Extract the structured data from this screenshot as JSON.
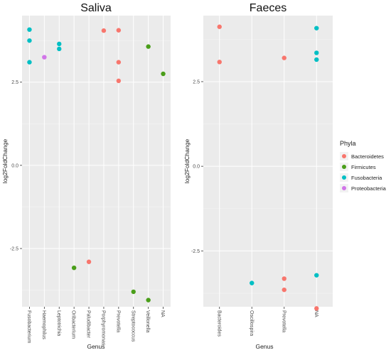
{
  "chart_data": [
    {
      "type": "scatter",
      "title": "Saliva",
      "xlabel": "Genus",
      "ylabel": "log2FoldChange",
      "categories": [
        "Fusobacterium",
        "Haemophilus",
        "Leptotrichia",
        "Oribacterium",
        "Paludibacter",
        "Porphyromonas",
        "Prevotella",
        "Streptococcus",
        "Veillonella",
        "NA"
      ],
      "yticks": [
        -2.5,
        0.0,
        2.5
      ],
      "ylim": [
        -4.25,
        4.5
      ],
      "grid": true,
      "series": [
        {
          "name": "Bacteroidetes",
          "points": [
            {
              "x": "Paludibacter",
              "y": -2.9
            },
            {
              "x": "Porphyromonas",
              "y": 4.05
            },
            {
              "x": "Prevotella",
              "y": 4.06
            },
            {
              "x": "Prevotella",
              "y": 3.1
            },
            {
              "x": "Prevotella",
              "y": 2.54
            }
          ]
        },
        {
          "name": "Firmicutes",
          "points": [
            {
              "x": "Oribacterium",
              "y": -3.08
            },
            {
              "x": "Streptococcus",
              "y": -3.8
            },
            {
              "x": "Veillonella",
              "y": 3.57
            },
            {
              "x": "Veillonella",
              "y": -4.05
            },
            {
              "x": "NA",
              "y": 2.75
            }
          ]
        },
        {
          "name": "Fusobacteria",
          "points": [
            {
              "x": "Fusobacterium",
              "y": 4.08
            },
            {
              "x": "Fusobacterium",
              "y": 3.75
            },
            {
              "x": "Fusobacterium",
              "y": 3.1
            },
            {
              "x": "Leptotrichia",
              "y": 3.65
            },
            {
              "x": "Leptotrichia",
              "y": 3.5
            }
          ]
        },
        {
          "name": "Proteobacteria",
          "points": [
            {
              "x": "Haemophilus",
              "y": 3.25
            }
          ]
        }
      ]
    },
    {
      "type": "scatter",
      "title": "Faeces",
      "xlabel": "Genus",
      "ylabel": "log2FoldChange",
      "categories": [
        "Bacteroides",
        "Oscillospira",
        "Prevotella",
        "NA"
      ],
      "yticks": [
        -2.5,
        0.0,
        2.5
      ],
      "ylim": [
        -4.15,
        4.45
      ],
      "grid": true,
      "series": [
        {
          "name": "Bacteroidetes",
          "points": [
            {
              "x": "Bacteroides",
              "y": 4.12
            },
            {
              "x": "Bacteroides",
              "y": 3.08
            },
            {
              "x": "Prevotella",
              "y": 3.2
            },
            {
              "x": "Prevotella",
              "y": -3.32
            },
            {
              "x": "Prevotella",
              "y": -3.65
            },
            {
              "x": "NA",
              "y": -4.2
            }
          ]
        },
        {
          "name": "Fusobacteria",
          "points": [
            {
              "x": "Oscillospira",
              "y": -3.45
            },
            {
              "x": "NA",
              "y": 4.08
            },
            {
              "x": "NA",
              "y": 3.35
            },
            {
              "x": "NA",
              "y": 3.15
            },
            {
              "x": "NA",
              "y": -3.22
            }
          ]
        }
      ]
    }
  ],
  "legend": {
    "title": "Phyla",
    "position": "right",
    "items": [
      {
        "label": "Bacteroidetes",
        "color": "#f8766d"
      },
      {
        "label": "Firmicutes",
        "color": "#4a9e1a"
      },
      {
        "label": "Fusobacteria",
        "color": "#00bfc4"
      },
      {
        "label": "Proteobacteria",
        "color": "#d175e8"
      }
    ]
  }
}
